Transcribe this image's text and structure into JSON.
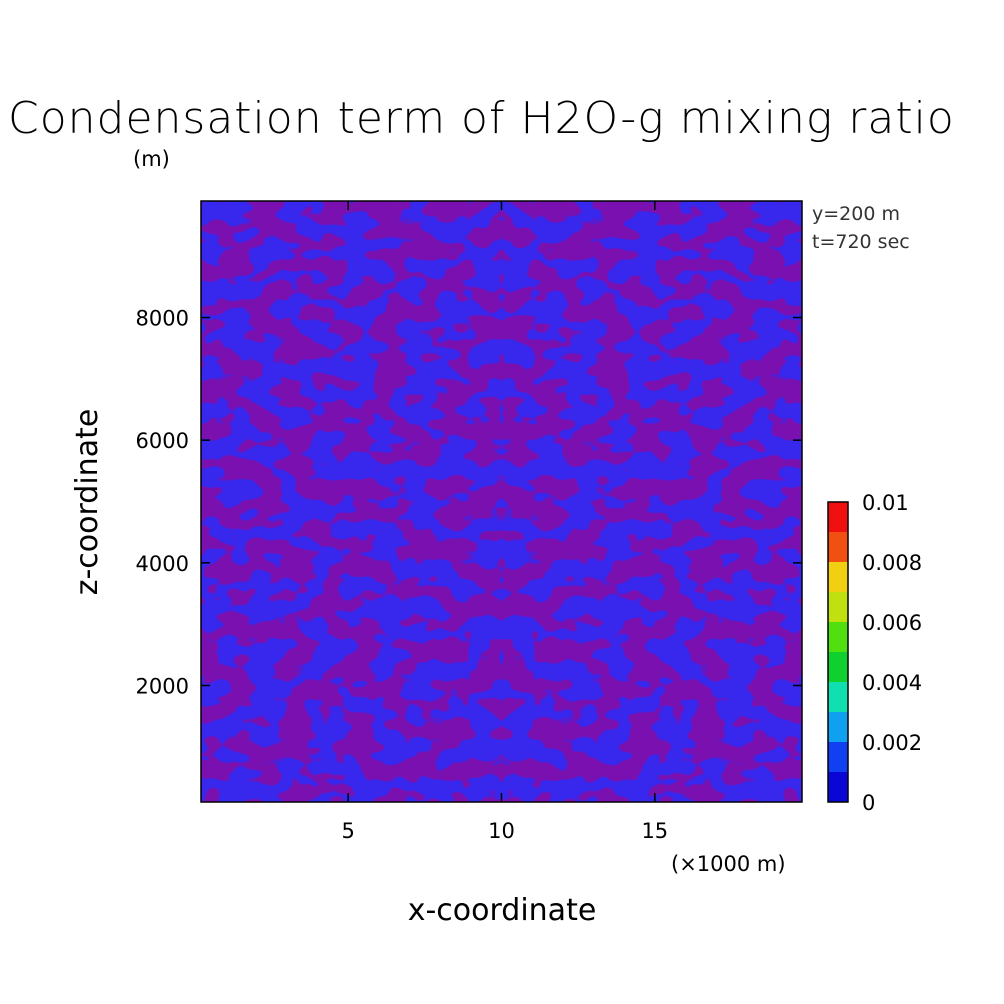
{
  "chart_data": {
    "type": "heatmap",
    "title": "Condensation term of H2O-g mixing ratio",
    "unit_label": "(m)",
    "xlabel": "x-coordinate",
    "ylabel": "z-coordinate",
    "x_unit_note": "(×1000 m)",
    "annotations": [
      "y=200 m",
      "t=720 sec"
    ],
    "xlim": [
      0.2,
      19.8
    ],
    "ylim": [
      100,
      9900
    ],
    "xticks": [
      5,
      10,
      15
    ],
    "xtick_labels": [
      "5",
      "10",
      "15"
    ],
    "yticks": [
      2000,
      4000,
      6000,
      8000
    ],
    "ytick_labels": [
      "2000",
      "4000",
      "6000",
      "8000"
    ],
    "field_levels": [
      {
        "level": "below 0",
        "color": "#7a10b0"
      },
      {
        "level": "0 – 0.001",
        "color": "#0a06d6"
      }
    ],
    "colorbar": {
      "levels": [
        0,
        0.001,
        0.002,
        0.003,
        0.004,
        0.005,
        0.006,
        0.007,
        0.008,
        0.009,
        0.01
      ],
      "colors": [
        "#0a06d6",
        "#1040f0",
        "#10a0f0",
        "#10e0b0",
        "#10d030",
        "#50e010",
        "#c0e010",
        "#f0d010",
        "#f05010",
        "#f01010"
      ],
      "tick_values": [
        0,
        0.002,
        0.004,
        0.006,
        0.008,
        0.01
      ],
      "tick_labels": [
        "0",
        "0.002",
        "0.004",
        "0.006",
        "0.008",
        "0.01"
      ]
    }
  }
}
